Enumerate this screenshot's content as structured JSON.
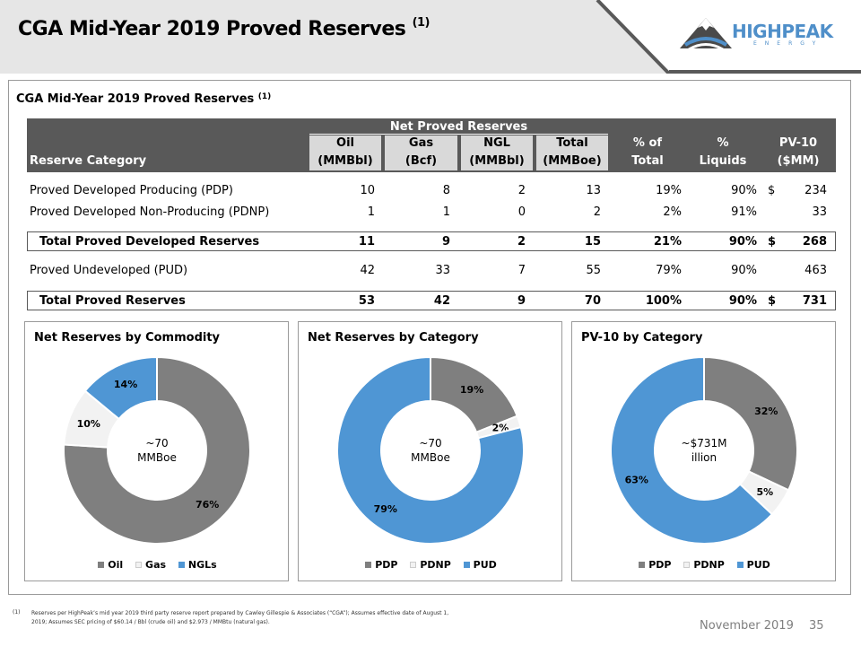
{
  "header": {
    "title": "CGA Mid-Year 2019 Proved Reserves",
    "title_sup": "(1)"
  },
  "logo": {
    "text": "HIGHPEAK",
    "sub": "ENERGY"
  },
  "section": {
    "title": "CGA Mid-Year 2019 Proved Reserves",
    "title_sup": "(1)"
  },
  "table": {
    "group_header": "Net Proved Reserves",
    "row_header": "Reserve Category",
    "columns": [
      {
        "l1": "Oil",
        "l2": "(MMBbl)"
      },
      {
        "l1": "Gas",
        "l2": "(Bcf)"
      },
      {
        "l1": "NGL",
        "l2": "(MMBbl)"
      },
      {
        "l1": "Total",
        "l2": "(MMBoe)"
      },
      {
        "l1": "% of",
        "l2": "Total"
      },
      {
        "l1": "%",
        "l2": "Liquids"
      },
      {
        "l1": "PV-10",
        "l2": "($MM)"
      }
    ],
    "rows": [
      {
        "label": "Proved Developed Producing (PDP)",
        "oil": "10",
        "gas": "8",
        "ngl": "2",
        "total": "13",
        "pct_total": "19%",
        "pct_liquids": "90%",
        "dollar": "$",
        "pv10": "234"
      },
      {
        "label": "Proved Developed Non-Producing (PDNP)",
        "oil": "1",
        "gas": "1",
        "ngl": "0",
        "total": "2",
        "pct_total": "2%",
        "pct_liquids": "91%",
        "dollar": "",
        "pv10": "33"
      },
      {
        "label": "Total Proved Developed Reserves",
        "oil": "11",
        "gas": "9",
        "ngl": "2",
        "total": "15",
        "pct_total": "21%",
        "pct_liquids": "90%",
        "dollar": "$",
        "pv10": "268"
      },
      {
        "label": "Proved Undeveloped (PUD)",
        "oil": "42",
        "gas": "33",
        "ngl": "7",
        "total": "55",
        "pct_total": "79%",
        "pct_liquids": "90%",
        "dollar": "",
        "pv10": "463"
      },
      {
        "label": "Total Proved Reserves",
        "oil": "53",
        "gas": "42",
        "ngl": "9",
        "total": "70",
        "pct_total": "100%",
        "pct_liquids": "90%",
        "dollar": "$",
        "pv10": "731"
      }
    ]
  },
  "colors": {
    "gray": "#7f7f7f",
    "light": "#f2f2f2",
    "blue": "#4f96d4",
    "header": "#595959"
  },
  "chart_data": [
    {
      "type": "pie",
      "title": "Net Reserves by Commodity",
      "center_label": [
        "~70",
        "MMBoe"
      ],
      "categories": [
        "Oil",
        "Gas",
        "NGLs"
      ],
      "values": [
        76,
        10,
        14
      ],
      "labels": [
        "76%",
        "10%",
        "14%"
      ],
      "colors": [
        "#7f7f7f",
        "#f2f2f2",
        "#4f96d4"
      ],
      "legend": "bottom"
    },
    {
      "type": "pie",
      "title": "Net Reserves by Category",
      "center_label": [
        "~70",
        "MMBoe"
      ],
      "categories": [
        "PDP",
        "PDNP",
        "PUD"
      ],
      "values": [
        19,
        2,
        79
      ],
      "labels": [
        "19%",
        "2%",
        "79%"
      ],
      "colors": [
        "#7f7f7f",
        "#f2f2f2",
        "#4f96d4"
      ],
      "legend": "bottom"
    },
    {
      "type": "pie",
      "title": "PV-10 by Category",
      "center_label": [
        "~$731M",
        "illion"
      ],
      "categories": [
        "PDP",
        "PDNP",
        "PUD"
      ],
      "values": [
        32,
        5,
        63
      ],
      "labels": [
        "32%",
        "5%",
        "63%"
      ],
      "colors": [
        "#7f7f7f",
        "#f2f2f2",
        "#4f96d4"
      ],
      "legend": "bottom"
    }
  ],
  "footnote": {
    "num": "(1)",
    "text": "Reserves per HighPeak’s mid year 2019 third party reserve report prepared by Cawley Gillespie & Associates (“CGA”);  Assumes effective date of August 1, 2019; Assumes SEC pricing of $60.14 / Bbl (crude oil) and $2.973 / MMBtu (natural gas)."
  },
  "footer": {
    "date": "November 2019",
    "page": "35"
  }
}
